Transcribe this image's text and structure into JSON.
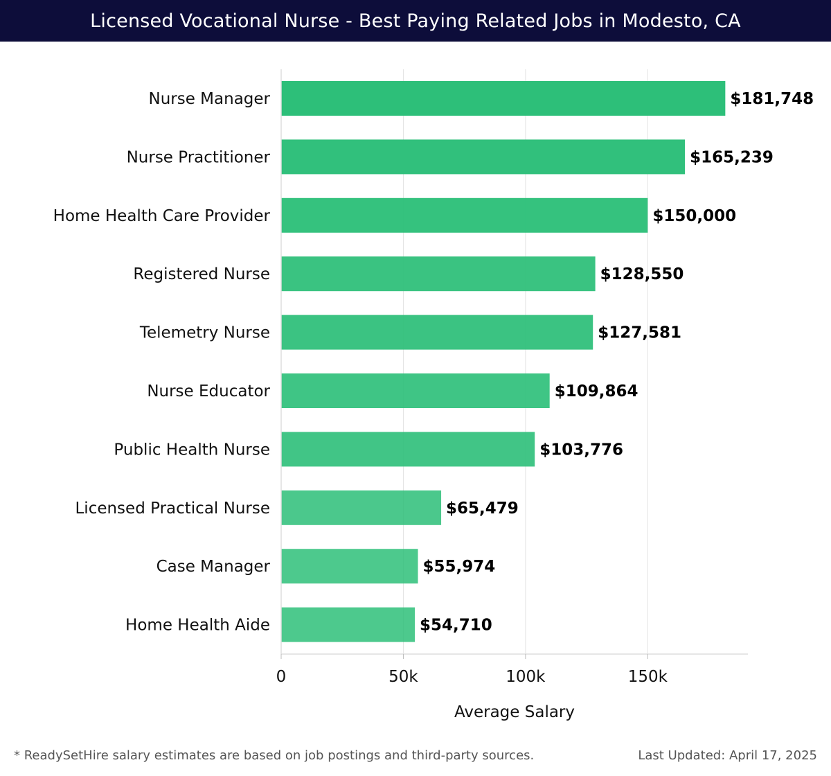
{
  "header": {
    "title": "Licensed Vocational Nurse - Best Paying Related Jobs in Modesto, CA"
  },
  "footer": {
    "note": "* ReadySetHire salary estimates are based on job postings and third-party sources.",
    "updated": "Last Updated: April 17, 2025"
  },
  "chart_data": {
    "type": "bar",
    "orientation": "horizontal",
    "title": "Licensed Vocational Nurse - Best Paying Related Jobs in Modesto, CA",
    "xlabel": "Average Salary",
    "ylabel": "",
    "xlim": [
      0,
      191000
    ],
    "xticks": [
      0,
      50000,
      100000,
      150000
    ],
    "xtick_labels": [
      "0",
      "50k",
      "100k",
      "150k"
    ],
    "grid": "vertical",
    "bar_color": "#2dbf79",
    "categories": [
      "Nurse Manager",
      "Nurse Practitioner",
      "Home Health Care Provider",
      "Registered Nurse",
      "Telemetry Nurse",
      "Nurse Educator",
      "Public Health Nurse",
      "Licensed Practical Nurse",
      "Case Manager",
      "Home Health Aide"
    ],
    "values": [
      181748,
      165239,
      150000,
      128550,
      127581,
      109864,
      103776,
      65479,
      55974,
      54710
    ],
    "value_labels": [
      "$181,748",
      "$165,239",
      "$150,000",
      "$128,550",
      "$127,581",
      "$109,864",
      "$103,776",
      "$65,479",
      "$55,974",
      "$54,710"
    ]
  }
}
